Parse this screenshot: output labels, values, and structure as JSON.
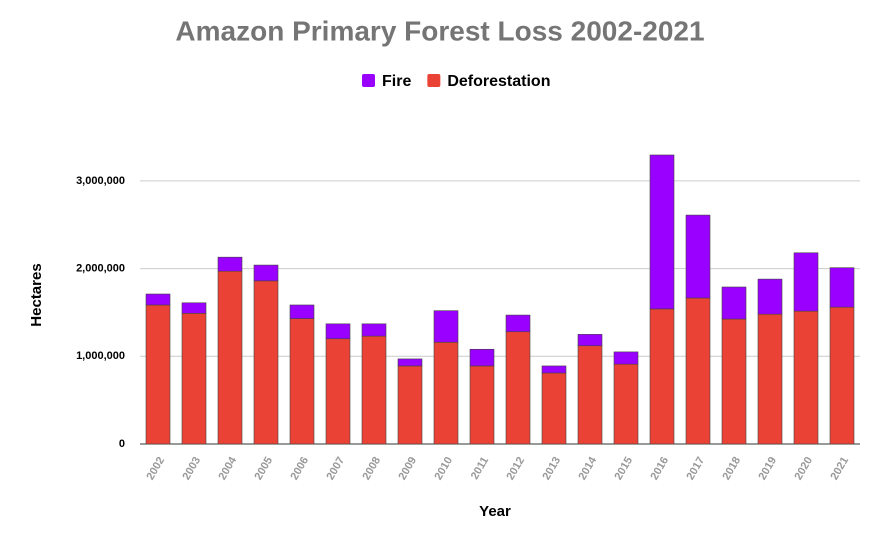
{
  "chart_data": {
    "type": "stacked_bar",
    "title": "Amazon Primary Forest Loss 2002-2021",
    "x_label": "Year",
    "y_label": "Hectares",
    "legend": "top",
    "grid": true,
    "categories": [
      "2002",
      "2003",
      "2004",
      "2005",
      "2006",
      "2007",
      "2008",
      "2009",
      "2010",
      "2011",
      "2012",
      "2013",
      "2014",
      "2015",
      "2016",
      "2017",
      "2018",
      "2019",
      "2020",
      "2021"
    ],
    "series": [
      {
        "name": "Fire",
        "color": "#9900ff",
        "values": [
          125000,
          120000,
          160000,
          180000,
          155000,
          170000,
          140000,
          80000,
          360000,
          190000,
          190000,
          80000,
          130000,
          140000,
          1755000,
          945000,
          365000,
          400000,
          665000,
          450000
        ]
      },
      {
        "name": "Deforestation",
        "color": "#ea4335",
        "values": [
          1585000,
          1490000,
          1970000,
          1860000,
          1430000,
          1200000,
          1230000,
          890000,
          1160000,
          890000,
          1280000,
          810000,
          1120000,
          910000,
          1540000,
          1665000,
          1425000,
          1480000,
          1515000,
          1560000
        ]
      }
    ],
    "ylim": [
      0,
      3500000
    ],
    "yticks": [
      0,
      {
        "value": 1000000,
        "label": "1,000,000"
      },
      {
        "value": 2000000,
        "label": "2,000,000"
      },
      {
        "value": 3000000,
        "label": "3,000,000"
      }
    ]
  }
}
